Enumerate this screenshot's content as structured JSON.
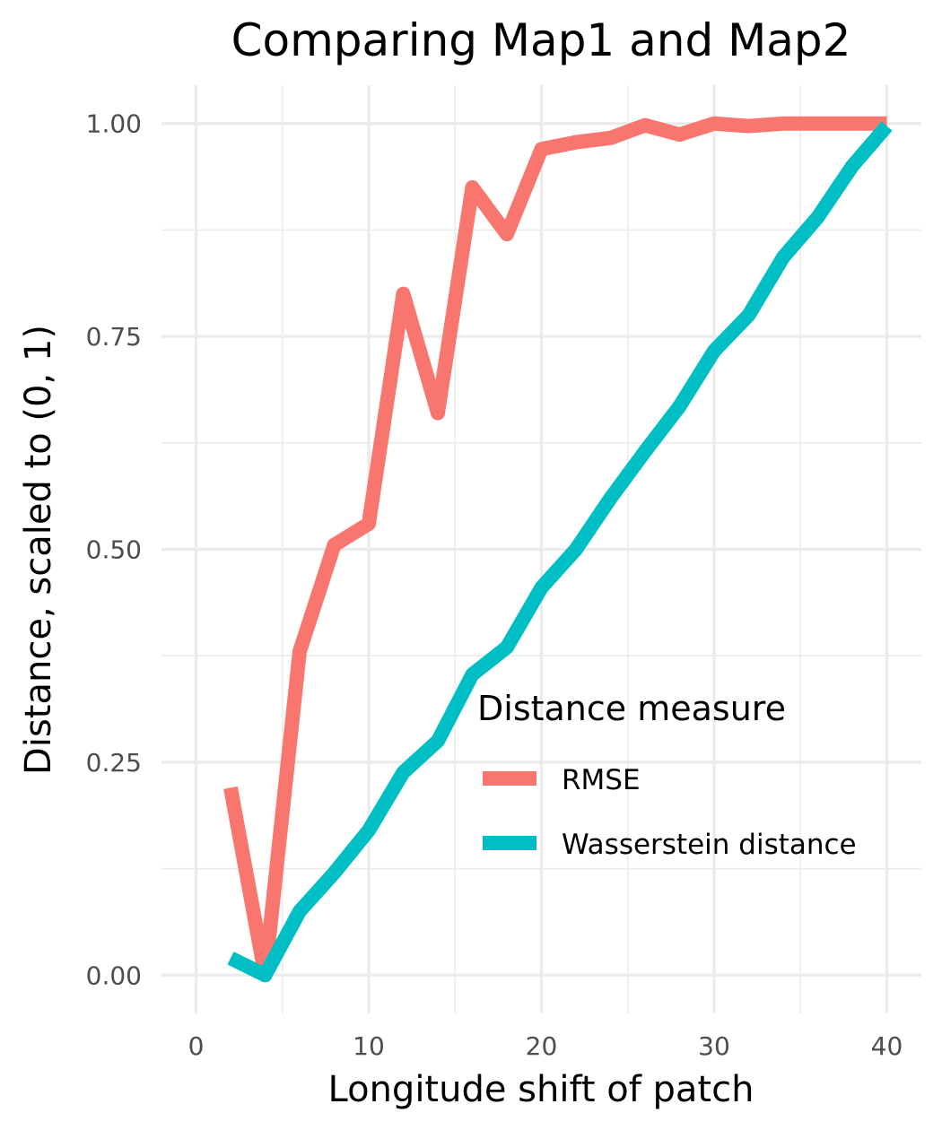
{
  "chart_data": {
    "type": "line",
    "title": "Comparing Map1 and Map2",
    "xlabel": "Longitude shift of patch",
    "ylabel": "Distance, scaled to (0, 1)",
    "xlim": [
      -2,
      42
    ],
    "ylim": [
      -0.045,
      1.045
    ],
    "x_ticks": [
      0,
      10,
      20,
      30,
      40
    ],
    "y_ticks": [
      0.0,
      0.25,
      0.5,
      0.75,
      1.0
    ],
    "x_tick_labels": [
      "0",
      "10",
      "20",
      "30",
      "40"
    ],
    "y_tick_labels": [
      "0.00",
      "0.25",
      "0.50",
      "0.75",
      "1.00"
    ],
    "grid": true,
    "legend": {
      "title": "Distance measure",
      "position": "inside-bottom-right"
    },
    "x": [
      2,
      4,
      6,
      8,
      10,
      12,
      14,
      16,
      18,
      20,
      22,
      24,
      26,
      28,
      30,
      32,
      34,
      36,
      38,
      40
    ],
    "series": [
      {
        "name": "RMSE",
        "color": "#F8766D",
        "values": [
          0.22,
          0.0,
          0.38,
          0.505,
          0.53,
          0.8,
          0.66,
          0.925,
          0.87,
          0.97,
          0.978,
          0.983,
          0.998,
          0.987,
          1.0,
          0.997,
          1.0,
          1.0,
          1.0,
          1.0
        ]
      },
      {
        "name": "Wasserstein distance",
        "color": "#00BFC4",
        "values": [
          0.02,
          0.0,
          0.075,
          0.12,
          0.17,
          0.238,
          0.275,
          0.353,
          0.385,
          0.455,
          0.5,
          0.56,
          0.615,
          0.668,
          0.733,
          0.775,
          0.843,
          0.89,
          0.95,
          0.997
        ]
      }
    ]
  }
}
